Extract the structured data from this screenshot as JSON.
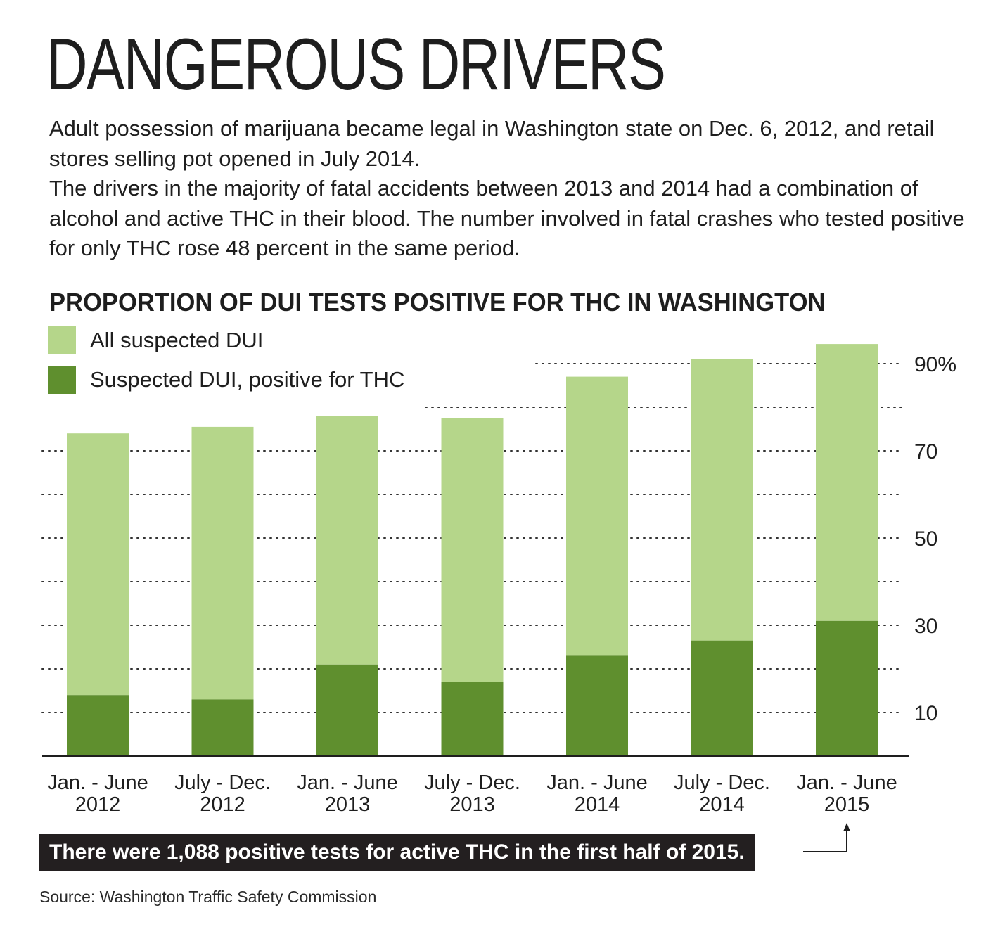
{
  "headline": "DANGEROUS DRIVERS",
  "intro": [
    "Adult possession of marijuana became legal in Washington state on Dec. 6, 2012, and retail stores selling pot opened in July 2014.",
    "The drivers in the majority of fatal accidents between 2013 and 2014 had a combination of alcohol and active THC in their blood. The number involved in fatal crashes who tested positive for only THC rose 48 percent in the same period."
  ],
  "callout": "There were 1,088 positive tests for active THC in the first half of 2015.",
  "source": "Source: Washington Traffic Safety Commission",
  "colors": {
    "all_dui": "#b5d68a",
    "thc_positive": "#5f8f2e",
    "callout_bg": "#231f20"
  },
  "chart_data": {
    "type": "bar",
    "title": "PROPORTION OF DUI TESTS POSITIVE FOR THC IN WASHINGTON",
    "categories": [
      [
        "Jan. - June",
        "2012"
      ],
      [
        "July - Dec.",
        "2012"
      ],
      [
        "Jan. - June",
        "2013"
      ],
      [
        "July - Dec.",
        "2013"
      ],
      [
        "Jan. - June",
        "2014"
      ],
      [
        "July - Dec.",
        "2014"
      ],
      [
        "Jan. - June",
        "2015"
      ]
    ],
    "series": [
      {
        "name": "All suspected DUI",
        "values": [
          74,
          75.5,
          78,
          77.5,
          87,
          91,
          94.5
        ]
      },
      {
        "name": "Suspected DUI, positive for THC",
        "values": [
          14,
          13,
          21,
          17,
          23,
          26.5,
          31
        ]
      }
    ],
    "ylim": [
      0,
      94.5
    ],
    "yticks": [
      10,
      20,
      30,
      40,
      50,
      60,
      70,
      80,
      90
    ],
    "ytick_labels": [
      "10",
      "",
      "30",
      "",
      "50",
      "",
      "70",
      "",
      "90%"
    ],
    "grid": "dotted horizontal",
    "legend": "top-left",
    "xlabel": "",
    "ylabel": ""
  }
}
